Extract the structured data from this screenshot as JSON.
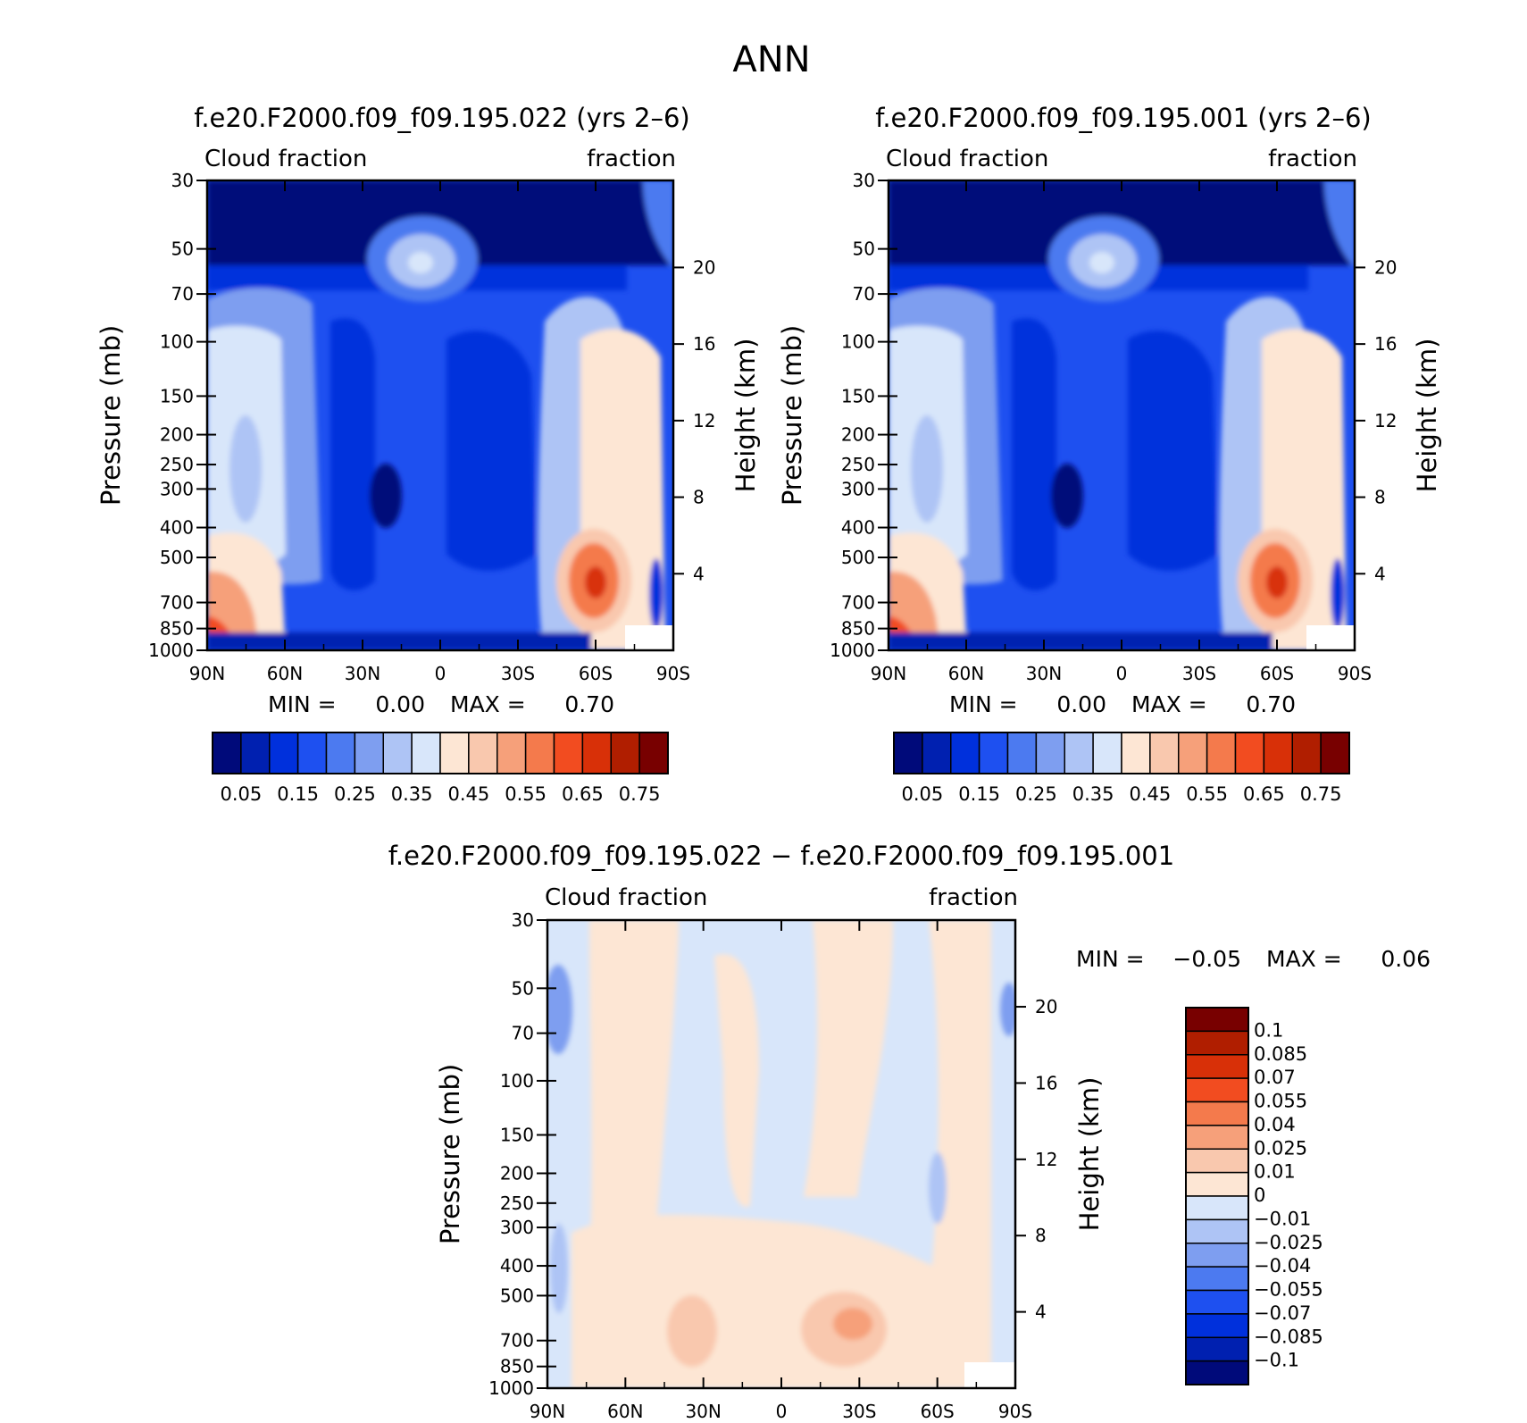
{
  "page": {
    "main_title": "ANN"
  },
  "axes": {
    "lat_ticks": [
      "90N",
      "60N",
      "30N",
      "0",
      "30S",
      "60S",
      "90S"
    ],
    "pressure_ticks": [
      "30",
      "50",
      "70",
      "100",
      "150",
      "200",
      "250",
      "300",
      "400",
      "500",
      "700",
      "850",
      "1000"
    ],
    "height_ticks": [
      "20",
      "16",
      "12",
      "8",
      "4"
    ],
    "ylabel_left": "Pressure (mb)",
    "ylabel_right": "Height (km)"
  },
  "chart_data": [
    {
      "type": "heatmap",
      "title": "f.e20.F2000.f09_f09.195.022 (yrs 2–6)",
      "left_subtitle": "Cloud fraction",
      "right_subtitle": "fraction",
      "xlim": [
        90,
        -90
      ],
      "ylim": [
        1000,
        30
      ],
      "y_scale": "log",
      "min_label": "MIN =",
      "min_value": "0.00",
      "max_label": "MAX =",
      "max_value": "0.70",
      "colorbar": {
        "orientation": "horizontal",
        "levels": [
          0.05,
          0.1,
          0.15,
          0.2,
          0.25,
          0.3,
          0.35,
          0.4,
          0.45,
          0.5,
          0.55,
          0.6,
          0.65,
          0.7,
          0.75
        ],
        "tick_labels": [
          "0.05",
          "0.15",
          "0.25",
          "0.35",
          "0.45",
          "0.55",
          "0.65",
          "0.75"
        ],
        "colors": [
          "#000a7a",
          "#0020b0",
          "#0030dc",
          "#1e50f0",
          "#4c7af0",
          "#7e9ef0",
          "#aec4f5",
          "#d8e6fa",
          "#fde6d4",
          "#f9c8ae",
          "#f6a07a",
          "#f47a4c",
          "#f24c20",
          "#d83008",
          "#b01e00",
          "#780000"
        ]
      }
    },
    {
      "type": "heatmap",
      "title": "f.e20.F2000.f09_f09.195.001 (yrs 2–6)",
      "left_subtitle": "Cloud fraction",
      "right_subtitle": "fraction",
      "xlim": [
        90,
        -90
      ],
      "ylim": [
        1000,
        30
      ],
      "y_scale": "log",
      "min_label": "MIN =",
      "min_value": "0.00",
      "max_label": "MAX =",
      "max_value": "0.70",
      "colorbar": {
        "orientation": "horizontal",
        "levels": [
          0.05,
          0.1,
          0.15,
          0.2,
          0.25,
          0.3,
          0.35,
          0.4,
          0.45,
          0.5,
          0.55,
          0.6,
          0.65,
          0.7,
          0.75
        ],
        "tick_labels": [
          "0.05",
          "0.15",
          "0.25",
          "0.35",
          "0.45",
          "0.55",
          "0.65",
          "0.75"
        ],
        "colors": [
          "#000a7a",
          "#0020b0",
          "#0030dc",
          "#1e50f0",
          "#4c7af0",
          "#7e9ef0",
          "#aec4f5",
          "#d8e6fa",
          "#fde6d4",
          "#f9c8ae",
          "#f6a07a",
          "#f47a4c",
          "#f24c20",
          "#d83008",
          "#b01e00",
          "#780000"
        ]
      }
    },
    {
      "type": "heatmap",
      "title": "f.e20.F2000.f09_f09.195.022 − f.e20.F2000.f09_f09.195.001",
      "left_subtitle": "Cloud fraction",
      "right_subtitle": "fraction",
      "xlim": [
        90,
        -90
      ],
      "ylim": [
        1000,
        30
      ],
      "y_scale": "log",
      "min_label": "MIN =",
      "min_value": "−0.05",
      "max_label": "MAX =",
      "max_value": "0.06",
      "colorbar": {
        "orientation": "vertical",
        "tick_labels": [
          "0.1",
          "0.085",
          "0.07",
          "0.055",
          "0.04",
          "0.025",
          "0.01",
          "0",
          "−0.01",
          "−0.025",
          "−0.04",
          "−0.055",
          "−0.07",
          "−0.085",
          "−0.1"
        ],
        "colors": [
          "#780000",
          "#b01e00",
          "#d83008",
          "#f24c20",
          "#f47a4c",
          "#f6a07a",
          "#f9c8ae",
          "#fde6d4",
          "#d8e6fa",
          "#aec4f5",
          "#7e9ef0",
          "#4c7af0",
          "#1e50f0",
          "#0030dc",
          "#0020b0",
          "#000a7a"
        ]
      }
    }
  ]
}
